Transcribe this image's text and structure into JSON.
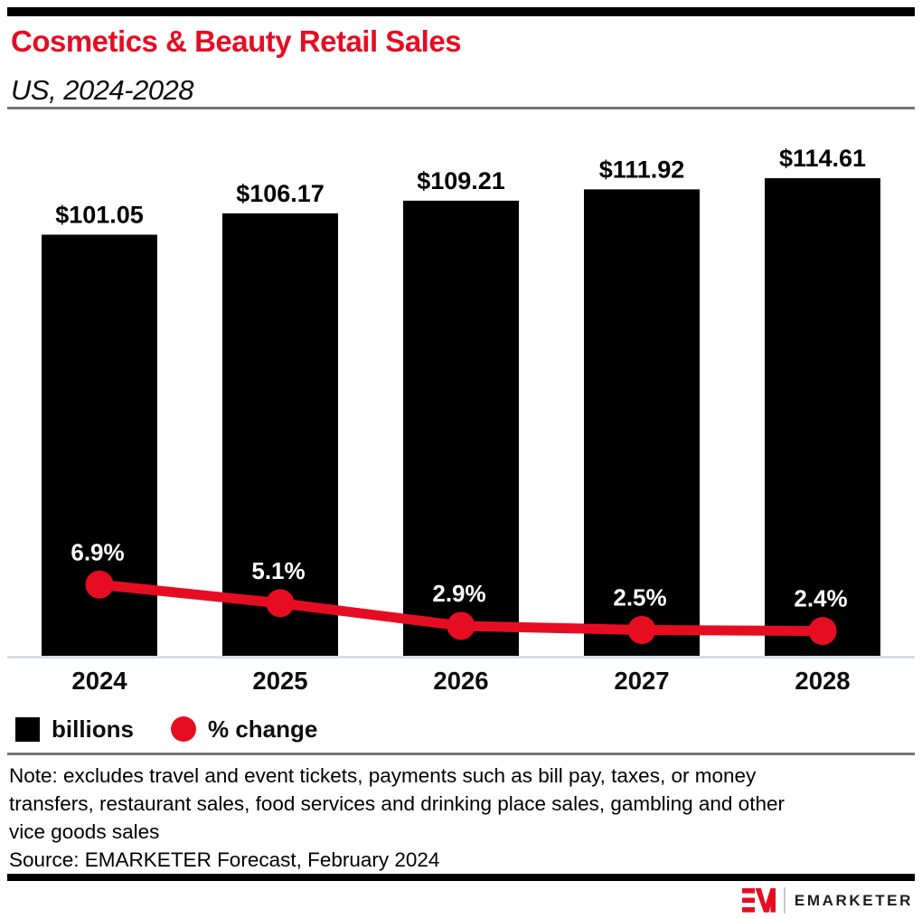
{
  "page": {
    "title": "Cosmetics & Beauty Retail Sales",
    "subtitle": "US, 2024-2028"
  },
  "chart_data": {
    "type": "bar",
    "title": "Cosmetics & Beauty Retail Sales",
    "subtitle": "US, 2024-2028",
    "categories": [
      "2024",
      "2025",
      "2026",
      "2027",
      "2028"
    ],
    "series": [
      {
        "name": "billions",
        "type": "bar",
        "values": [
          101.05,
          106.17,
          109.21,
          111.92,
          114.61
        ],
        "labels": [
          "$101.05",
          "$106.17",
          "$109.21",
          "$111.92",
          "$114.61"
        ],
        "color": "#000000"
      },
      {
        "name": "% change",
        "type": "line",
        "values": [
          6.9,
          5.1,
          2.9,
          2.5,
          2.4
        ],
        "labels": [
          "6.9%",
          "5.1%",
          "2.9%",
          "2.5%",
          "2.4%"
        ],
        "color": "#e60d22"
      }
    ],
    "xlabel": "",
    "ylabel": "",
    "y_axis_ticks": "hidden",
    "grid": false,
    "legend_position": "bottom-left",
    "bar_ylim": [
      0,
      129
    ],
    "pct_ylim": [
      0,
      52
    ]
  },
  "legend": {
    "items": [
      {
        "label": "billions",
        "swatch": "square",
        "color": "#000000"
      },
      {
        "label": "% change",
        "swatch": "circle",
        "color": "#e60d22"
      }
    ]
  },
  "notes": {
    "note_lines": [
      "Note: excludes travel and event tickets, payments such as bill pay, taxes, or money",
      "transfers, restaurant sales, food services and drinking place sales, gambling and other",
      "vice goods sales"
    ],
    "source": "Source: EMARKETER Forecast, February 2024"
  },
  "footer": {
    "brand": "EMARKETER",
    "logo_icon": "emarketer-em-logo"
  },
  "colors": {
    "accent_red": "#e60d22",
    "bar_black": "#000000",
    "axis_line": "#cfd6e4",
    "divider_gray": "#757575",
    "pct_label_white": "#ffffff"
  }
}
